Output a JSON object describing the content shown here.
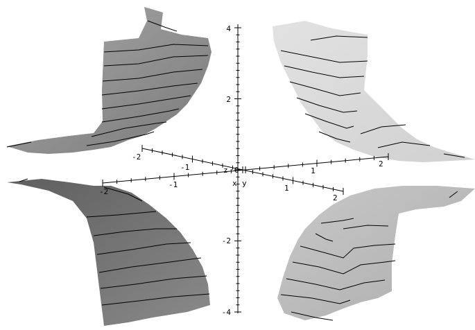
{
  "plot": {
    "type": "3d-surface",
    "colors": {
      "upper_left": "#8f8f8f",
      "upper_right": "#d8d8d8",
      "lower_left": "#6f6f6f",
      "lower_right": "#bdbdbd",
      "background": "#ffffff",
      "ink": "#000000"
    },
    "z_axis": {
      "name": "z",
      "ticks": [
        "4",
        "2",
        "-2",
        "-4"
      ]
    },
    "x_axis": {
      "name": "x",
      "ticks": [
        "-2",
        "-1",
        "1",
        "2"
      ]
    },
    "y_axis": {
      "name": "y",
      "ticks": [
        "-2",
        "-1",
        "1",
        "2"
      ]
    },
    "origin_label": "0"
  }
}
